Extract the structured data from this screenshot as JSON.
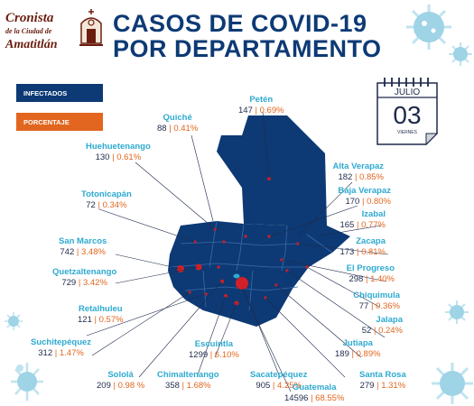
{
  "header": {
    "logo": {
      "line1": "Cronista",
      "line2": "de la Ciudad de",
      "line3": "Amatitlán"
    },
    "title_line1": "CASOS DE COVID-19",
    "title_line2": "POR DEPARTAMENTO"
  },
  "legend": {
    "infectados": "INFECTADOS",
    "porcentaje": "PORCENTAJE",
    "colors": {
      "infectados": "#0d3a75",
      "porcentaje": "#e2661f"
    }
  },
  "calendar": {
    "month": "JULIO",
    "day": "03",
    "weekday": "VIERNES"
  },
  "departments": [
    {
      "name": "Petén",
      "cases": "147",
      "pct": "0.69%"
    },
    {
      "name": "Quiché",
      "cases": "88",
      "pct": "0.41%"
    },
    {
      "name": "Huehuetenango",
      "cases": "130",
      "pct": "0.61%"
    },
    {
      "name": "Alta Verapaz",
      "cases": "182",
      "pct": "0.85%"
    },
    {
      "name": "Baja Verapaz",
      "cases": "170",
      "pct": "0.80%"
    },
    {
      "name": "Totonicapán",
      "cases": "72",
      "pct": "0.34%"
    },
    {
      "name": "Izabal",
      "cases": "165",
      "pct": "0.77%"
    },
    {
      "name": "San Marcos",
      "cases": "742",
      "pct": "3.48%"
    },
    {
      "name": "Zacapa",
      "cases": "173",
      "pct": "0.81%"
    },
    {
      "name": "El Progreso",
      "cases": "298",
      "pct": "1.40%"
    },
    {
      "name": "Quetzaltenango",
      "cases": "729",
      "pct": "3.42%"
    },
    {
      "name": "Chiquimula",
      "cases": "77",
      "pct": "0.36%"
    },
    {
      "name": "Retalhuleu",
      "cases": "121",
      "pct": "0.57%"
    },
    {
      "name": "Jalapa",
      "cases": "52",
      "pct": "0.24%"
    },
    {
      "name": "Suchitepéquez",
      "cases": "312",
      "pct": "1.47%"
    },
    {
      "name": "Jutiapa",
      "cases": "189",
      "pct": "0.89%"
    },
    {
      "name": "Escuintla",
      "cases": "1299",
      "pct": "6.10%"
    },
    {
      "name": "Santa Rosa",
      "cases": "279",
      "pct": "1.31%"
    },
    {
      "name": "Sololá",
      "cases": "209",
      "pct": "0.98 %"
    },
    {
      "name": "Chimaltenango",
      "cases": "358",
      "pct": "1.68%"
    },
    {
      "name": "Sacatepéquez",
      "cases": "905",
      "pct": "4.25%"
    },
    {
      "name": "Guatemala",
      "cases": "14596",
      "pct": "68.55%"
    }
  ]
}
